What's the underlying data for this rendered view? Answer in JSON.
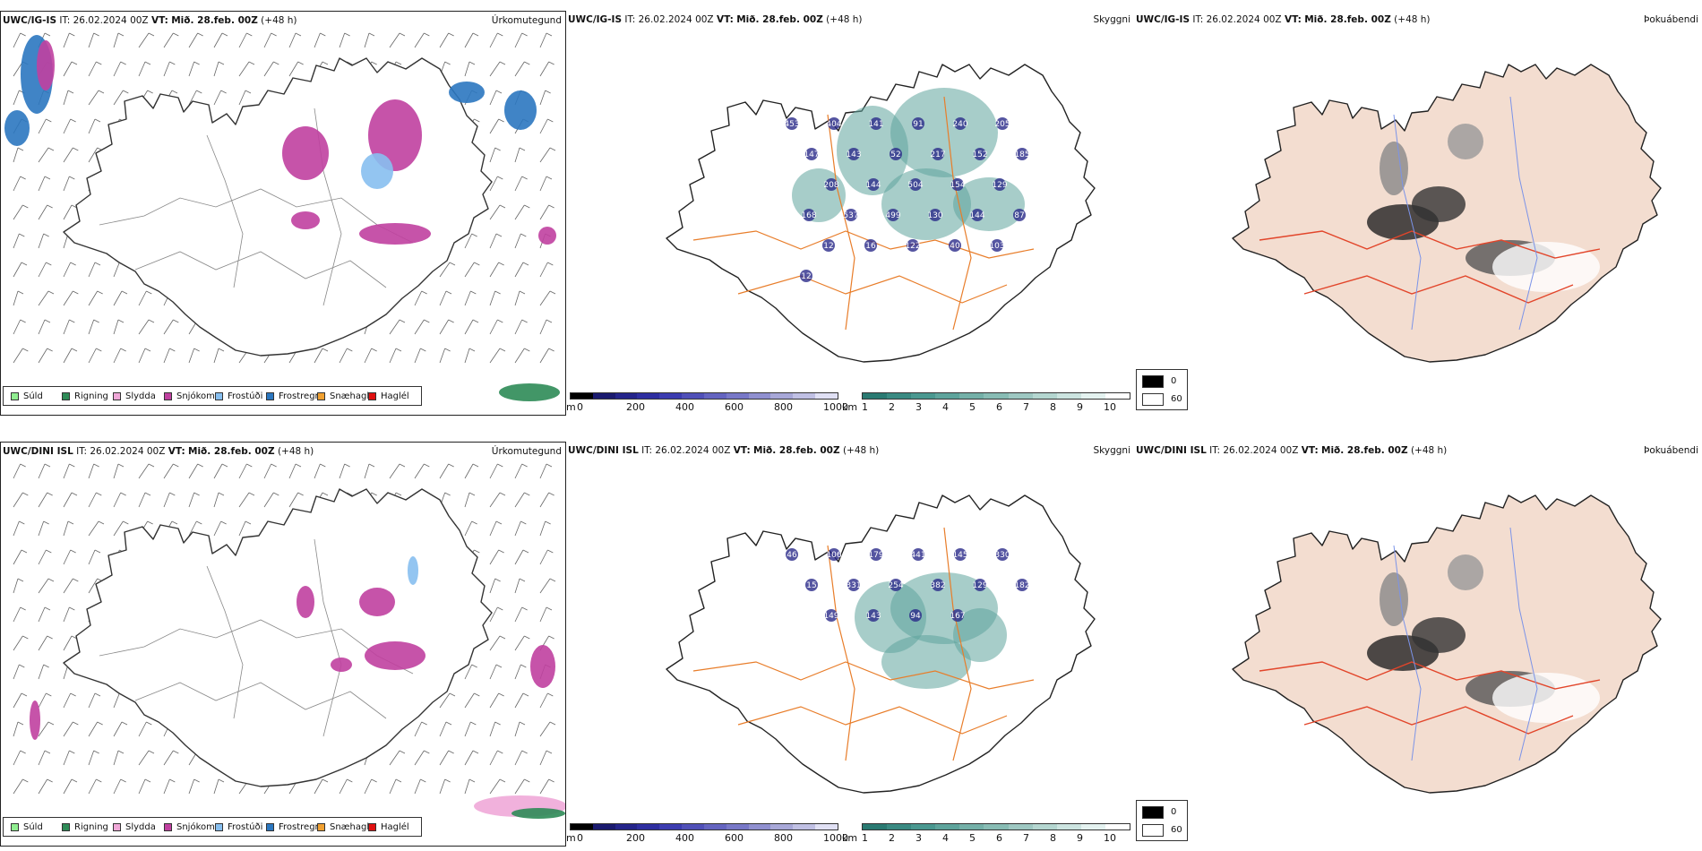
{
  "rows": [
    {
      "model": "UWC/IG-IS",
      "it_label": "IT:",
      "it_value": "26.02.2024 00Z",
      "vt_label": "VT:",
      "vt_value": "Mið. 28.feb. 00Z",
      "lead": "(+48 h)"
    },
    {
      "model": "UWC/DINI ISL",
      "it_label": "IT:",
      "it_value": "26.02.2024 00Z",
      "vt_label": "VT:",
      "vt_value": "Mið. 28.feb. 00Z",
      "lead": "(+48 h)"
    }
  ],
  "panel_titles": {
    "precip": "Úrkomutegund",
    "visibility": "Skyggni",
    "fog": "Þokuábendi"
  },
  "precip_legend": [
    {
      "label": "Súld",
      "color": "#90ee90"
    },
    {
      "label": "Rigning",
      "color": "#2e8b57"
    },
    {
      "label": "Slydda",
      "color": "#f0a8d8"
    },
    {
      "label": "Snjókoma",
      "color": "#c040a0"
    },
    {
      "label": "Frostúði",
      "color": "#87bff0"
    },
    {
      "label": "Frostregn",
      "color": "#2b77c0"
    },
    {
      "label": "Snæhagl",
      "color": "#f0a030"
    },
    {
      "label": "Haglél",
      "color": "#e01010"
    }
  ],
  "cloud_base": {
    "unit": "m",
    "ticks": [
      "0",
      "200",
      "400",
      "600",
      "800",
      "1000"
    ],
    "colors": [
      "#000000",
      "#1a1a6e",
      "#24248a",
      "#2e2ea0",
      "#3c3cb0",
      "#5050b8",
      "#6464c0",
      "#7878c8",
      "#9090d0",
      "#a8a8d8",
      "#c0c0e4",
      "#e0e0f4"
    ]
  },
  "visibility_scale": {
    "unit": "km",
    "ticks": [
      "1",
      "2",
      "3",
      "4",
      "5",
      "6",
      "7",
      "8",
      "9",
      "10"
    ],
    "colors": [
      "#2a7a72",
      "#3a8a82",
      "#4a9890",
      "#5ea49c",
      "#74b0a8",
      "#88bcb4",
      "#9ec8c2",
      "#b4d6d0",
      "#cce4e0",
      "#e4f2f0",
      "#ffffff"
    ]
  },
  "fog_legend": [
    {
      "label": "0",
      "color": "#000000"
    },
    {
      "label": "60",
      "color": "#ffffff"
    }
  ],
  "ceiling_labels_top": [
    "453",
    "404",
    "141",
    "91",
    "240",
    "205",
    "147",
    "143",
    "52",
    "217",
    "152",
    "185",
    "208",
    "144",
    "504",
    "154",
    "129",
    "168",
    "537",
    "499",
    "130",
    "144",
    "87",
    "12",
    "16",
    "122",
    "40",
    "103",
    "12"
  ],
  "ceiling_labels_bottom": [
    "46",
    "106",
    "179",
    "441",
    "145",
    "330",
    "15",
    "331",
    "254",
    "382",
    "129",
    "182",
    "149",
    "143",
    "94",
    "167"
  ],
  "colors": {
    "iceland_fill_precip": "#ffffff",
    "iceland_fill_fog": "#f3ddd0",
    "roads": "#e87d2a",
    "roads_fog": "#e2452a",
    "rivers": "#7b93e8",
    "coast": "#333333"
  }
}
